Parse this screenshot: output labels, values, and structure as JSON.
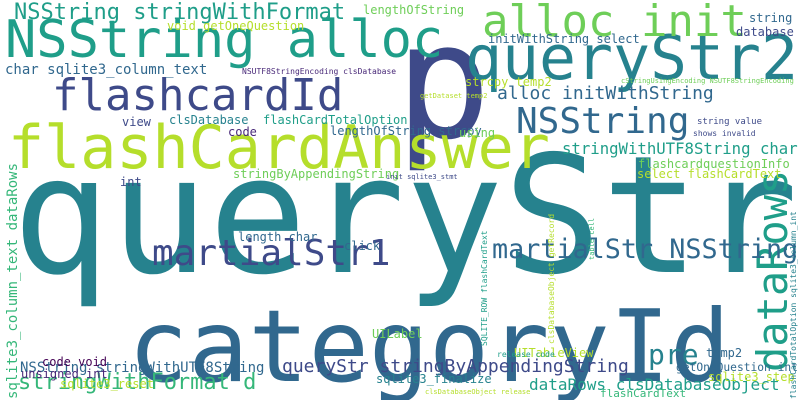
{
  "palette": [
    "#440154",
    "#482878",
    "#3e4a89",
    "#31688e",
    "#26828e",
    "#1f9e89",
    "#35b779",
    "#6ece58",
    "#b5de2b",
    "#fde725"
  ],
  "words": [
    {
      "text": "queryStr",
      "color": "#26828e",
      "vertical": false
    },
    {
      "text": "categoryId",
      "color": "#31688e",
      "vertical": false
    },
    {
      "text": "p",
      "color": "#3e4a89",
      "vertical": false
    },
    {
      "text": "flashCardAnswer",
      "color": "#b5de2b",
      "vertical": false
    },
    {
      "text": "queryStr2",
      "color": "#26828e",
      "vertical": false
    },
    {
      "text": "NSString alloc",
      "color": "#1f9e89",
      "vertical": false
    },
    {
      "text": "flashcardId",
      "color": "#3e4a89",
      "vertical": false
    },
    {
      "text": "alloc init",
      "color": "#6ece58",
      "vertical": false
    },
    {
      "text": "dataRows",
      "color": "#1f9e89",
      "vertical": true
    },
    {
      "text": "martialStr1",
      "color": "#3e4a89",
      "vertical": false
    },
    {
      "text": "martialStr NSString",
      "color": "#31688e",
      "vertical": false
    },
    {
      "text": "NSString",
      "color": "#31688e",
      "vertical": false
    },
    {
      "text": "NSString stringWithFormat",
      "color": "#1f9e89",
      "vertical": false
    },
    {
      "text": "pre",
      "color": "#26828e",
      "vertical": false
    },
    {
      "text": "stringWithFormat d",
      "color": "#35b779",
      "vertical": false
    },
    {
      "text": "alloc initWithString",
      "color": "#31688e",
      "vertical": false
    },
    {
      "text": "NSString stringWithUTF8String",
      "color": "#31688e",
      "vertical": false
    },
    {
      "text": "queryStr stringByAppendingString",
      "color": "#3e4a89",
      "vertical": false
    },
    {
      "text": "stringWithUTF8String char",
      "color": "#1f9e89",
      "vertical": false
    },
    {
      "text": "dataRows clsDatabaseObject",
      "color": "#1f9e89",
      "vertical": false
    },
    {
      "text": "char sqlite3_column_text",
      "color": "#31688e",
      "vertical": false
    },
    {
      "text": "sqlite3_column_text dataRows",
      "color": "#35b779",
      "vertical": true
    },
    {
      "text": "code void",
      "color": "#440154",
      "vertical": false
    },
    {
      "text": "unsigned int",
      "color": "#482878",
      "vertical": false
    },
    {
      "text": "sqlite3_reset",
      "color": "#b5de2b",
      "vertical": false
    },
    {
      "text": "sqlite3_finalize",
      "color": "#26828e",
      "vertical": false
    },
    {
      "text": "getOneQuestion int",
      "color": "#31688e",
      "vertical": false
    },
    {
      "text": "sqlite3_step",
      "color": "#b5de2b",
      "vertical": false
    },
    {
      "text": "temp2",
      "color": "#31688e",
      "vertical": false
    },
    {
      "text": "UITableView",
      "color": "#b5de2b",
      "vertical": false
    },
    {
      "text": "UILabel",
      "color": "#6ece58",
      "vertical": false
    },
    {
      "text": "click",
      "color": "#31688e",
      "vertical": false
    },
    {
      "text": "flashCardText",
      "color": "#35b779",
      "vertical": false
    },
    {
      "text": "select flashCardText",
      "color": "#b5de2b",
      "vertical": false
    },
    {
      "text": "flashcardquestionInfo",
      "color": "#6ece58",
      "vertical": false
    },
    {
      "text": "stringByAppendingString",
      "color": "#6ece58",
      "vertical": false
    },
    {
      "text": "lengthOfString strcpy",
      "color": "#31688e",
      "vertical": false
    },
    {
      "text": "flashCardTotalOption",
      "color": "#1f9e89",
      "vertical": false
    },
    {
      "text": "clsDatabase",
      "color": "#26828e",
      "vertical": false
    },
    {
      "text": "view",
      "color": "#3e4a89",
      "vertical": false
    },
    {
      "text": "code",
      "color": "#482878",
      "vertical": false
    },
    {
      "text": "using",
      "color": "#6ece58",
      "vertical": false
    },
    {
      "text": "int",
      "color": "#3e4a89",
      "vertical": false
    },
    {
      "text": "length char",
      "color": "#31688e",
      "vertical": false
    },
    {
      "text": "initWithString select",
      "color": "#31688e",
      "vertical": false
    },
    {
      "text": "strcpy temp2",
      "color": "#b5de2b",
      "vertical": false
    },
    {
      "text": "lengthOfString",
      "color": "#6ece58",
      "vertical": false
    },
    {
      "text": "void getOneQuestion",
      "color": "#b5de2b",
      "vertical": false
    },
    {
      "text": "NSUTF8StringEncoding clsDatabase",
      "color": "#482878",
      "vertical": false
    },
    {
      "text": "cStringUsingEncoding NSUTF8StringEncoding",
      "color": "#6ece58",
      "vertical": false
    },
    {
      "text": "getDataset temp2",
      "color": "#b5de2b",
      "vertical": false
    },
    {
      "text": "string",
      "color": "#31688e",
      "vertical": false
    },
    {
      "text": "database",
      "color": "#3e4a89",
      "vertical": false
    },
    {
      "text": "string value",
      "color": "#3e4a89",
      "vertical": false
    },
    {
      "text": "shows invalid",
      "color": "#3e4a89",
      "vertical": false
    },
    {
      "text": "init sqlite3_stmt",
      "color": "#3e4a89",
      "vertical": false
    },
    {
      "text": "SQLITE_ROW flashCardText",
      "color": "#1f9e89",
      "vertical": true
    },
    {
      "text": "clsDatabaseObject getRecord",
      "color": "#b5de2b",
      "vertical": true
    },
    {
      "text": "table cell",
      "color": "#35b779",
      "vertical": true
    },
    {
      "text": "flashCardTotalOption sqlite3_column_int",
      "color": "#26828e",
      "vertical": true
    },
    {
      "text": "release code",
      "color": "#1f9e89",
      "vertical": false
    },
    {
      "text": "clsDatabaseObject release",
      "color": "#b5de2b",
      "vertical": false
    }
  ]
}
